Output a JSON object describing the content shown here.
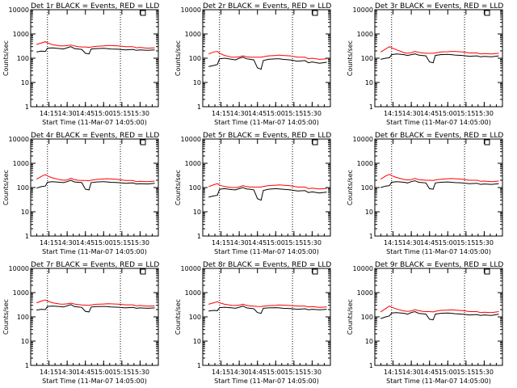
{
  "page": {
    "background": "#ffffff",
    "series_colors": {
      "events": "#000000",
      "lld": "#ff0000"
    }
  },
  "chart_data": [
    {
      "type": "line",
      "log_y": true,
      "title": "Det 1r BLACK = Events, RED = LLD",
      "xlabel": "Start Time (11-Mar-07 14:05:00)",
      "ylabel": "Counts/sec",
      "ylim": [
        1,
        10000
      ],
      "yticks": [
        1,
        10,
        100,
        1000,
        10000
      ],
      "xticks": [
        "14:15",
        "14:30",
        "14:45",
        "15:00",
        "15:15",
        "15:30"
      ],
      "x": [
        14.08,
        14.15,
        14.2,
        14.23,
        14.3,
        14.4,
        14.45,
        14.5,
        14.55,
        14.6,
        14.65,
        14.7,
        14.75,
        14.8,
        14.83,
        14.9,
        15.0,
        15.05,
        15.1,
        15.2,
        15.3,
        15.4,
        15.45,
        15.5,
        15.6,
        15.7
      ],
      "vlines": [
        14.23,
        15.23
      ],
      "series": [
        {
          "values": [
            180,
            195,
            190,
            260,
            265,
            250,
            240,
            270,
            300,
            250,
            240,
            230,
            160,
            150,
            240,
            250,
            255,
            250,
            240,
            235,
            220,
            230,
            210,
            220,
            210,
            220
          ]
        },
        {
          "values": [
            370,
            430,
            480,
            430,
            360,
            320,
            320,
            330,
            350,
            320,
            300,
            290,
            290,
            280,
            290,
            310,
            320,
            330,
            330,
            320,
            300,
            300,
            270,
            280,
            260,
            270
          ]
        }
      ]
    },
    {
      "type": "line",
      "log_y": true,
      "title": "Det 2r BLACK = Events, RED = LLD",
      "xlabel": "Start Time (11-Mar-07 14:05:00)",
      "ylabel": "Counts/sec",
      "ylim": [
        1,
        10000
      ],
      "yticks": [
        1,
        10,
        100,
        1000,
        10000
      ],
      "xticks": [
        "14:15",
        "14:30",
        "14:45",
        "15:00",
        "15:15",
        "15:30"
      ],
      "x": [
        14.08,
        14.15,
        14.2,
        14.23,
        14.3,
        14.4,
        14.45,
        14.5,
        14.55,
        14.6,
        14.65,
        14.7,
        14.75,
        14.8,
        14.83,
        14.9,
        15.0,
        15.05,
        15.1,
        15.2,
        15.3,
        15.4,
        15.45,
        15.5,
        15.6,
        15.7
      ],
      "vlines": [
        14.23,
        15.23
      ],
      "series": [
        {
          "values": [
            45,
            50,
            55,
            95,
            100,
            90,
            85,
            100,
            110,
            95,
            90,
            85,
            40,
            35,
            80,
            90,
            95,
            95,
            90,
            85,
            75,
            80,
            65,
            70,
            62,
            68
          ]
        },
        {
          "values": [
            150,
            180,
            190,
            160,
            130,
            110,
            110,
            115,
            125,
            115,
            110,
            110,
            110,
            110,
            115,
            125,
            130,
            135,
            130,
            125,
            110,
            110,
            95,
            100,
            90,
            95
          ]
        }
      ]
    },
    {
      "type": "line",
      "log_y": true,
      "title": "Det 3r BLACK = Events, RED = LLD",
      "xlabel": "Start Time (11-Mar-07 14:05:00)",
      "ylabel": "Counts/sec",
      "ylim": [
        1,
        10000
      ],
      "yticks": [
        1,
        10,
        100,
        1000,
        10000
      ],
      "xticks": [
        "14:15",
        "14:30",
        "14:45",
        "15:00",
        "15:15",
        "15:30"
      ],
      "x": [
        14.08,
        14.15,
        14.2,
        14.23,
        14.3,
        14.4,
        14.45,
        14.5,
        14.55,
        14.6,
        14.65,
        14.7,
        14.75,
        14.8,
        14.83,
        14.9,
        15.0,
        15.05,
        15.1,
        15.2,
        15.3,
        15.4,
        15.45,
        15.5,
        15.6,
        15.7
      ],
      "vlines": [
        14.23,
        15.23
      ],
      "series": [
        {
          "values": [
            90,
            100,
            105,
            140,
            150,
            140,
            130,
            140,
            150,
            135,
            130,
            125,
            70,
            65,
            130,
            140,
            145,
            140,
            135,
            130,
            120,
            125,
            115,
            118,
            115,
            125
          ]
        },
        {
          "values": [
            180,
            240,
            300,
            270,
            220,
            170,
            160,
            170,
            190,
            175,
            165,
            160,
            160,
            160,
            165,
            180,
            185,
            190,
            190,
            180,
            165,
            165,
            150,
            155,
            150,
            160
          ]
        }
      ]
    },
    {
      "type": "line",
      "log_y": true,
      "title": "Det 4r BLACK = Events, RED = LLD",
      "xlabel": "Start Time (11-Mar-07 14:05:00)",
      "ylabel": "Counts/sec",
      "ylim": [
        1,
        10000
      ],
      "yticks": [
        1,
        10,
        100,
        1000,
        10000
      ],
      "xticks": [
        "14:15",
        "14:30",
        "14:45",
        "15:00",
        "15:15",
        "15:30"
      ],
      "x": [
        14.08,
        14.15,
        14.2,
        14.23,
        14.3,
        14.4,
        14.45,
        14.5,
        14.55,
        14.6,
        14.65,
        14.7,
        14.75,
        14.8,
        14.83,
        14.9,
        15.0,
        15.05,
        15.1,
        15.2,
        15.3,
        15.4,
        15.45,
        15.5,
        15.6,
        15.7
      ],
      "vlines": [
        14.23,
        15.23
      ],
      "series": [
        {
          "values": [
            95,
            110,
            115,
            165,
            175,
            165,
            160,
            175,
            200,
            170,
            165,
            160,
            85,
            80,
            160,
            170,
            175,
            170,
            165,
            160,
            150,
            155,
            140,
            145,
            140,
            150
          ]
        },
        {
          "values": [
            220,
            290,
            340,
            300,
            250,
            210,
            200,
            205,
            240,
            210,
            200,
            195,
            195,
            190,
            200,
            215,
            225,
            230,
            225,
            215,
            195,
            195,
            175,
            180,
            175,
            185
          ]
        }
      ]
    },
    {
      "type": "line",
      "log_y": true,
      "title": "Det 5r BLACK = Events, RED = LLD",
      "xlabel": "Start Time (11-Mar-07 14:05:00)",
      "ylabel": "Counts/sec",
      "ylim": [
        1,
        10000
      ],
      "yticks": [
        1,
        10,
        100,
        1000,
        10000
      ],
      "xticks": [
        "14:15",
        "14:30",
        "14:45",
        "15:00",
        "15:15",
        "15:30"
      ],
      "x": [
        14.08,
        14.15,
        14.2,
        14.23,
        14.3,
        14.4,
        14.45,
        14.5,
        14.55,
        14.6,
        14.65,
        14.7,
        14.75,
        14.8,
        14.83,
        14.9,
        15.0,
        15.05,
        15.1,
        15.2,
        15.3,
        15.4,
        15.45,
        15.5,
        15.6,
        15.7
      ],
      "vlines": [
        14.23,
        15.23
      ],
      "series": [
        {
          "values": [
            40,
            45,
            48,
            85,
            90,
            82,
            80,
            90,
            100,
            88,
            85,
            80,
            35,
            30,
            75,
            85,
            90,
            88,
            85,
            80,
            72,
            75,
            62,
            66,
            60,
            65
          ]
        },
        {
          "values": [
            110,
            130,
            145,
            125,
            110,
            100,
            100,
            105,
            120,
            110,
            105,
            105,
            105,
            105,
            110,
            120,
            125,
            128,
            125,
            118,
            105,
            105,
            90,
            95,
            88,
            92
          ]
        }
      ]
    },
    {
      "type": "line",
      "log_y": true,
      "title": "Det 6r BLACK = Events, RED = LLD",
      "xlabel": "Start Time (11-Mar-07 14:05:00)",
      "ylabel": "Counts/sec",
      "ylim": [
        1,
        10000
      ],
      "yticks": [
        1,
        10,
        100,
        1000,
        10000
      ],
      "xticks": [
        "14:15",
        "14:30",
        "14:45",
        "15:00",
        "15:15",
        "15:30"
      ],
      "x": [
        14.08,
        14.15,
        14.2,
        14.23,
        14.3,
        14.4,
        14.45,
        14.5,
        14.55,
        14.6,
        14.65,
        14.7,
        14.75,
        14.8,
        14.83,
        14.9,
        15.0,
        15.05,
        15.1,
        15.2,
        15.3,
        15.4,
        15.45,
        15.5,
        15.6,
        15.7
      ],
      "vlines": [
        14.23,
        15.23
      ],
      "series": [
        {
          "values": [
            100,
            115,
            120,
            165,
            175,
            165,
            155,
            175,
            190,
            165,
            160,
            155,
            90,
            85,
            155,
            165,
            170,
            165,
            160,
            155,
            145,
            150,
            135,
            140,
            135,
            145
          ]
        },
        {
          "values": [
            220,
            300,
            350,
            310,
            260,
            215,
            205,
            210,
            240,
            210,
            205,
            200,
            200,
            195,
            205,
            220,
            230,
            235,
            230,
            220,
            200,
            200,
            180,
            185,
            175,
            185
          ]
        }
      ]
    },
    {
      "type": "line",
      "log_y": true,
      "title": "Det 7r BLACK = Events, RED = LLD",
      "xlabel": "Start Time (11-Mar-07 14:05:00)",
      "ylabel": "Counts/sec",
      "ylim": [
        1,
        10000
      ],
      "yticks": [
        1,
        10,
        100,
        1000,
        10000
      ],
      "xticks": [
        "14:15",
        "14:30",
        "14:45",
        "15:00",
        "15:15",
        "15:30"
      ],
      "x": [
        14.08,
        14.15,
        14.2,
        14.23,
        14.3,
        14.4,
        14.45,
        14.5,
        14.55,
        14.6,
        14.65,
        14.7,
        14.75,
        14.8,
        14.83,
        14.9,
        15.0,
        15.05,
        15.1,
        15.2,
        15.3,
        15.4,
        15.45,
        15.5,
        15.6,
        15.7
      ],
      "vlines": [
        14.23,
        15.23
      ],
      "series": [
        {
          "values": [
            190,
            205,
            200,
            270,
            280,
            265,
            255,
            285,
            320,
            265,
            255,
            245,
            170,
            160,
            255,
            265,
            270,
            265,
            255,
            250,
            235,
            245,
            225,
            235,
            225,
            235
          ]
        },
        {
          "values": [
            380,
            450,
            500,
            450,
            380,
            340,
            335,
            345,
            370,
            340,
            320,
            310,
            305,
            300,
            310,
            330,
            340,
            350,
            345,
            335,
            315,
            315,
            285,
            295,
            275,
            285
          ]
        }
      ]
    },
    {
      "type": "line",
      "log_y": true,
      "title": "Det 8r BLACK = Events, RED = LLD",
      "xlabel": "Start Time (11-Mar-07 14:05:00)",
      "ylabel": "Counts/sec",
      "ylim": [
        1,
        10000
      ],
      "yticks": [
        1,
        10,
        100,
        1000,
        10000
      ],
      "xticks": [
        "14:15",
        "14:30",
        "14:45",
        "15:00",
        "15:15",
        "15:30"
      ],
      "x": [
        14.08,
        14.15,
        14.2,
        14.23,
        14.3,
        14.4,
        14.45,
        14.5,
        14.55,
        14.6,
        14.65,
        14.7,
        14.75,
        14.8,
        14.83,
        14.9,
        15.0,
        15.05,
        15.1,
        15.2,
        15.3,
        15.4,
        15.45,
        15.5,
        15.6,
        15.7
      ],
      "vlines": [
        14.23,
        15.23
      ],
      "series": [
        {
          "values": [
            175,
            185,
            180,
            240,
            250,
            235,
            225,
            250,
            280,
            235,
            225,
            215,
            150,
            140,
            225,
            235,
            240,
            235,
            225,
            220,
            205,
            215,
            195,
            205,
            195,
            205
          ]
        },
        {
          "values": [
            330,
            380,
            420,
            380,
            330,
            300,
            295,
            305,
            330,
            300,
            285,
            275,
            270,
            265,
            275,
            290,
            300,
            310,
            305,
            295,
            280,
            280,
            255,
            265,
            245,
            255
          ]
        }
      ]
    },
    {
      "type": "line",
      "log_y": true,
      "title": "Det 9r BLACK = Events, RED = LLD",
      "xlabel": "Start Time (11-Mar-07 14:05:00)",
      "ylabel": "Counts/sec",
      "ylim": [
        1,
        10000
      ],
      "yticks": [
        1,
        10,
        100,
        1000,
        10000
      ],
      "xticks": [
        "14:15",
        "14:30",
        "14:45",
        "15:00",
        "15:15",
        "15:30"
      ],
      "x": [
        14.08,
        14.15,
        14.2,
        14.23,
        14.3,
        14.4,
        14.45,
        14.5,
        14.55,
        14.6,
        14.65,
        14.7,
        14.75,
        14.8,
        14.83,
        14.9,
        15.0,
        15.05,
        15.1,
        15.2,
        15.3,
        15.4,
        15.45,
        15.5,
        15.6,
        15.7
      ],
      "vlines": [
        14.23,
        15.23
      ],
      "series": [
        {
          "values": [
            85,
            100,
            110,
            145,
            150,
            140,
            130,
            150,
            165,
            140,
            135,
            130,
            80,
            75,
            130,
            140,
            145,
            140,
            135,
            130,
            120,
            125,
            115,
            120,
            115,
            130
          ]
        },
        {
          "values": [
            160,
            220,
            280,
            250,
            210,
            175,
            170,
            175,
            200,
            180,
            170,
            165,
            165,
            160,
            170,
            185,
            190,
            195,
            190,
            180,
            165,
            165,
            150,
            155,
            150,
            165
          ]
        }
      ]
    }
  ]
}
